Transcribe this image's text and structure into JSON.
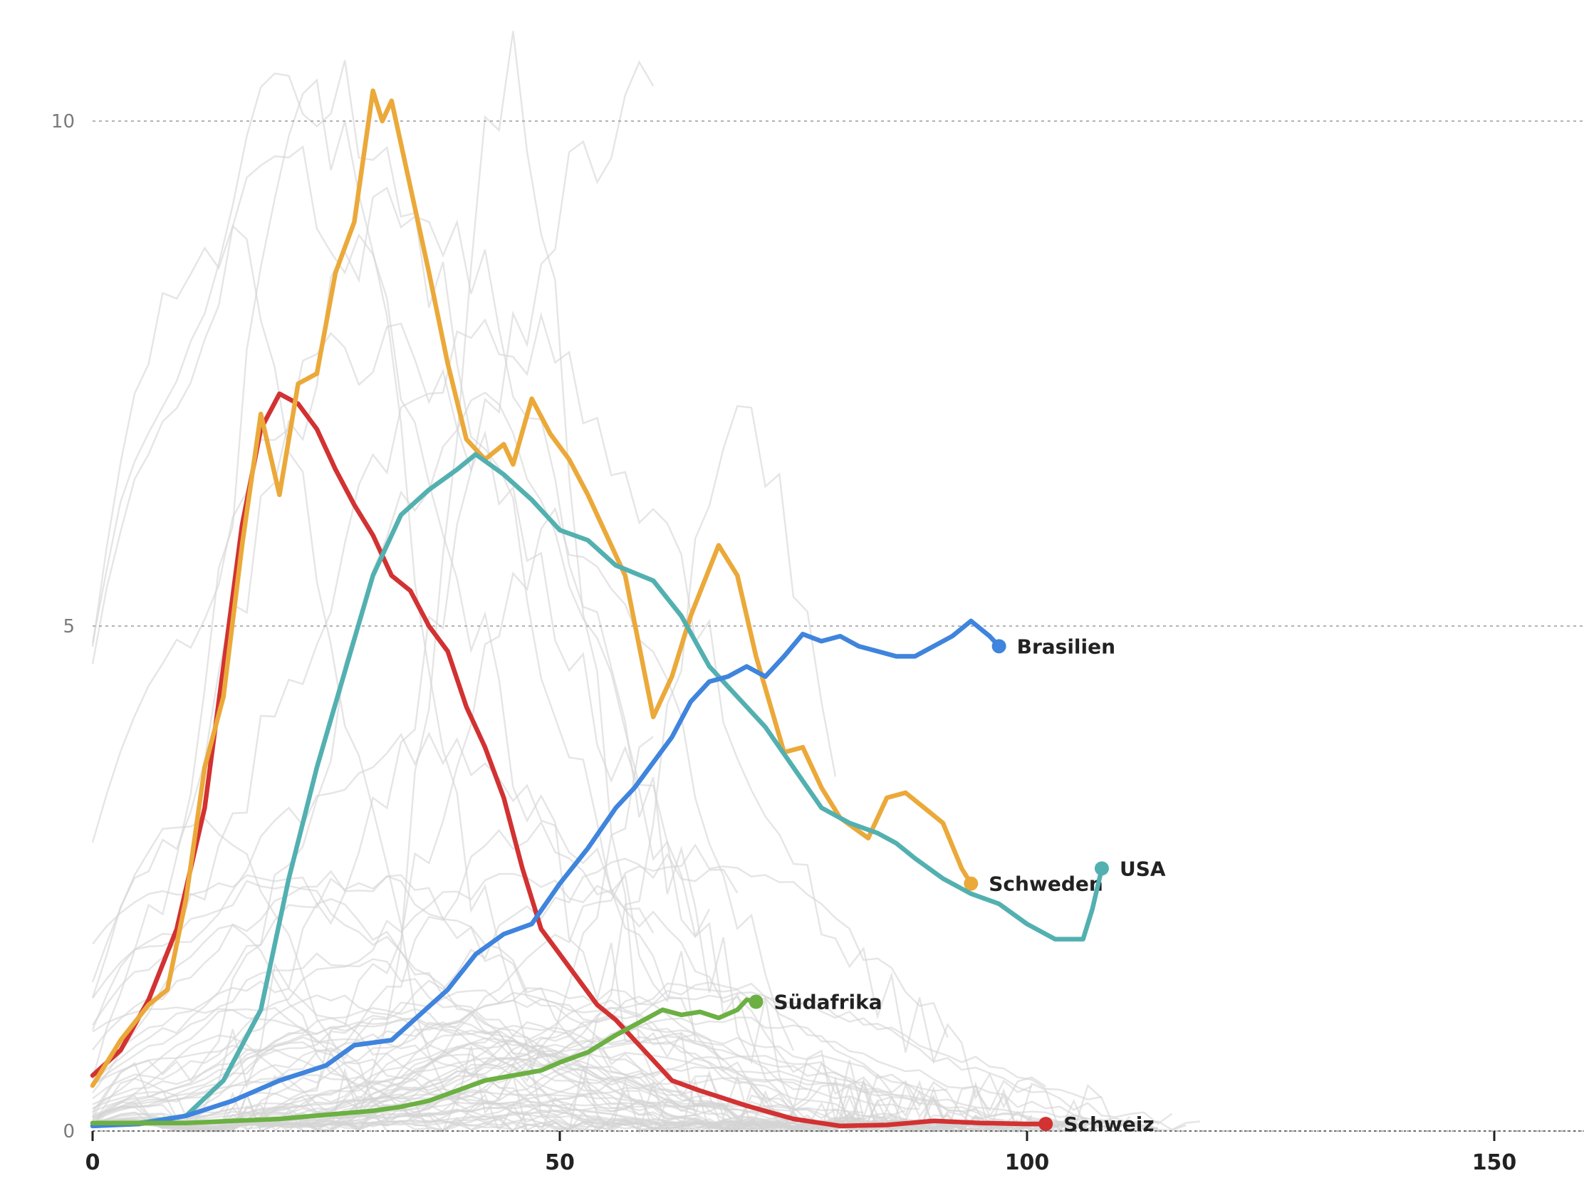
{
  "chart_data": {
    "type": "line",
    "title": "",
    "xlabel": "",
    "ylabel": "",
    "xlim": [
      0,
      160
    ],
    "ylim": [
      0,
      11
    ],
    "x_ticks": [
      0,
      50,
      100,
      150
    ],
    "y_ticks": [
      0,
      5,
      10
    ],
    "grid": "horizontal dotted",
    "background_series_color": "#d3d3d3",
    "series": [
      {
        "name": "Schweiz",
        "color": "#d23232",
        "points": [
          [
            0,
            0.55
          ],
          [
            3,
            0.8
          ],
          [
            6,
            1.3
          ],
          [
            9,
            2.0
          ],
          [
            12,
            3.2
          ],
          [
            14,
            4.6
          ],
          [
            16,
            6.0
          ],
          [
            18,
            6.95
          ],
          [
            20,
            7.3
          ],
          [
            22,
            7.2
          ],
          [
            24,
            6.95
          ],
          [
            26,
            6.55
          ],
          [
            28,
            6.2
          ],
          [
            30,
            5.9
          ],
          [
            32,
            5.5
          ],
          [
            34,
            5.35
          ],
          [
            36,
            5.0
          ],
          [
            38,
            4.75
          ],
          [
            40,
            4.2
          ],
          [
            42,
            3.8
          ],
          [
            44,
            3.3
          ],
          [
            46,
            2.6
          ],
          [
            48,
            2.0
          ],
          [
            50,
            1.75
          ],
          [
            52,
            1.5
          ],
          [
            54,
            1.25
          ],
          [
            56,
            1.1
          ],
          [
            58,
            0.9
          ],
          [
            60,
            0.7
          ],
          [
            62,
            0.5
          ],
          [
            65,
            0.4
          ],
          [
            70,
            0.25
          ],
          [
            75,
            0.12
          ],
          [
            80,
            0.05
          ],
          [
            85,
            0.06
          ],
          [
            90,
            0.1
          ],
          [
            95,
            0.08
          ],
          [
            100,
            0.07
          ],
          [
            102,
            0.07
          ]
        ],
        "end_label": "Schweiz"
      },
      {
        "name": "Schweden",
        "color": "#eba93a",
        "points": [
          [
            0,
            0.45
          ],
          [
            3,
            0.9
          ],
          [
            6,
            1.25
          ],
          [
            8,
            1.4
          ],
          [
            10,
            2.3
          ],
          [
            12,
            3.6
          ],
          [
            14,
            4.3
          ],
          [
            16,
            5.8
          ],
          [
            18,
            7.1
          ],
          [
            20,
            6.3
          ],
          [
            22,
            7.4
          ],
          [
            24,
            7.5
          ],
          [
            26,
            8.5
          ],
          [
            28,
            9.0
          ],
          [
            30,
            10.3
          ],
          [
            31,
            10.0
          ],
          [
            32,
            10.2
          ],
          [
            34,
            9.35
          ],
          [
            36,
            8.5
          ],
          [
            38,
            7.6
          ],
          [
            40,
            6.85
          ],
          [
            42,
            6.65
          ],
          [
            44,
            6.8
          ],
          [
            45,
            6.6
          ],
          [
            47,
            7.25
          ],
          [
            49,
            6.9
          ],
          [
            51,
            6.65
          ],
          [
            53,
            6.3
          ],
          [
            55,
            5.9
          ],
          [
            57,
            5.5
          ],
          [
            60,
            4.1
          ],
          [
            62,
            4.5
          ],
          [
            64,
            5.1
          ],
          [
            67,
            5.8
          ],
          [
            69,
            5.5
          ],
          [
            71,
            4.7
          ],
          [
            74,
            3.75
          ],
          [
            76,
            3.8
          ],
          [
            78,
            3.4
          ],
          [
            80,
            3.1
          ],
          [
            83,
            2.9
          ],
          [
            85,
            3.3
          ],
          [
            87,
            3.35
          ],
          [
            89,
            3.2
          ],
          [
            91,
            3.05
          ],
          [
            93,
            2.6
          ],
          [
            94,
            2.45
          ]
        ],
        "end_label": "Schweden"
      },
      {
        "name": "USA",
        "color": "#53b0b0",
        "points": [
          [
            0,
            0.05
          ],
          [
            5,
            0.08
          ],
          [
            10,
            0.15
          ],
          [
            14,
            0.5
          ],
          [
            18,
            1.2
          ],
          [
            21,
            2.5
          ],
          [
            24,
            3.6
          ],
          [
            27,
            4.55
          ],
          [
            30,
            5.5
          ],
          [
            33,
            6.1
          ],
          [
            36,
            6.35
          ],
          [
            39,
            6.55
          ],
          [
            41,
            6.7
          ],
          [
            44,
            6.5
          ],
          [
            47,
            6.25
          ],
          [
            50,
            5.95
          ],
          [
            53,
            5.85
          ],
          [
            56,
            5.6
          ],
          [
            60,
            5.45
          ],
          [
            63,
            5.1
          ],
          [
            66,
            4.6
          ],
          [
            69,
            4.3
          ],
          [
            72,
            4.0
          ],
          [
            75,
            3.6
          ],
          [
            78,
            3.2
          ],
          [
            81,
            3.05
          ],
          [
            84,
            2.95
          ],
          [
            86,
            2.85
          ],
          [
            88,
            2.7
          ],
          [
            91,
            2.5
          ],
          [
            94,
            2.35
          ],
          [
            97,
            2.25
          ],
          [
            100,
            2.05
          ],
          [
            103,
            1.9
          ],
          [
            106,
            1.9
          ],
          [
            107,
            2.2
          ],
          [
            108,
            2.6
          ]
        ],
        "end_label": "USA"
      },
      {
        "name": "Brasilien",
        "color": "#3f84dd",
        "points": [
          [
            0,
            0.05
          ],
          [
            5,
            0.07
          ],
          [
            10,
            0.15
          ],
          [
            15,
            0.3
          ],
          [
            20,
            0.5
          ],
          [
            25,
            0.65
          ],
          [
            28,
            0.85
          ],
          [
            32,
            0.9
          ],
          [
            35,
            1.15
          ],
          [
            38,
            1.4
          ],
          [
            41,
            1.75
          ],
          [
            44,
            1.95
          ],
          [
            47,
            2.05
          ],
          [
            50,
            2.45
          ],
          [
            53,
            2.8
          ],
          [
            56,
            3.2
          ],
          [
            58,
            3.4
          ],
          [
            60,
            3.65
          ],
          [
            62,
            3.9
          ],
          [
            64,
            4.25
          ],
          [
            66,
            4.45
          ],
          [
            68,
            4.5
          ],
          [
            70,
            4.6
          ],
          [
            72,
            4.5
          ],
          [
            74,
            4.7
          ],
          [
            76,
            4.92
          ],
          [
            78,
            4.85
          ],
          [
            80,
            4.9
          ],
          [
            82,
            4.8
          ],
          [
            84,
            4.75
          ],
          [
            86,
            4.7
          ],
          [
            88,
            4.7
          ],
          [
            90,
            4.8
          ],
          [
            92,
            4.9
          ],
          [
            94,
            5.05
          ],
          [
            96,
            4.9
          ],
          [
            97,
            4.8
          ]
        ],
        "end_label": "Brasilien"
      },
      {
        "name": "Südafrika",
        "color": "#6cb043",
        "points": [
          [
            0,
            0.08
          ],
          [
            5,
            0.08
          ],
          [
            10,
            0.08
          ],
          [
            15,
            0.1
          ],
          [
            20,
            0.12
          ],
          [
            25,
            0.16
          ],
          [
            30,
            0.2
          ],
          [
            33,
            0.24
          ],
          [
            36,
            0.3
          ],
          [
            39,
            0.4
          ],
          [
            42,
            0.5
          ],
          [
            45,
            0.55
          ],
          [
            48,
            0.6
          ],
          [
            50,
            0.68
          ],
          [
            53,
            0.78
          ],
          [
            56,
            0.95
          ],
          [
            59,
            1.1
          ],
          [
            61,
            1.2
          ],
          [
            63,
            1.15
          ],
          [
            65,
            1.18
          ],
          [
            67,
            1.12
          ],
          [
            69,
            1.2
          ],
          [
            70,
            1.3
          ],
          [
            71,
            1.28
          ]
        ],
        "end_label": "Südafrika"
      }
    ]
  }
}
